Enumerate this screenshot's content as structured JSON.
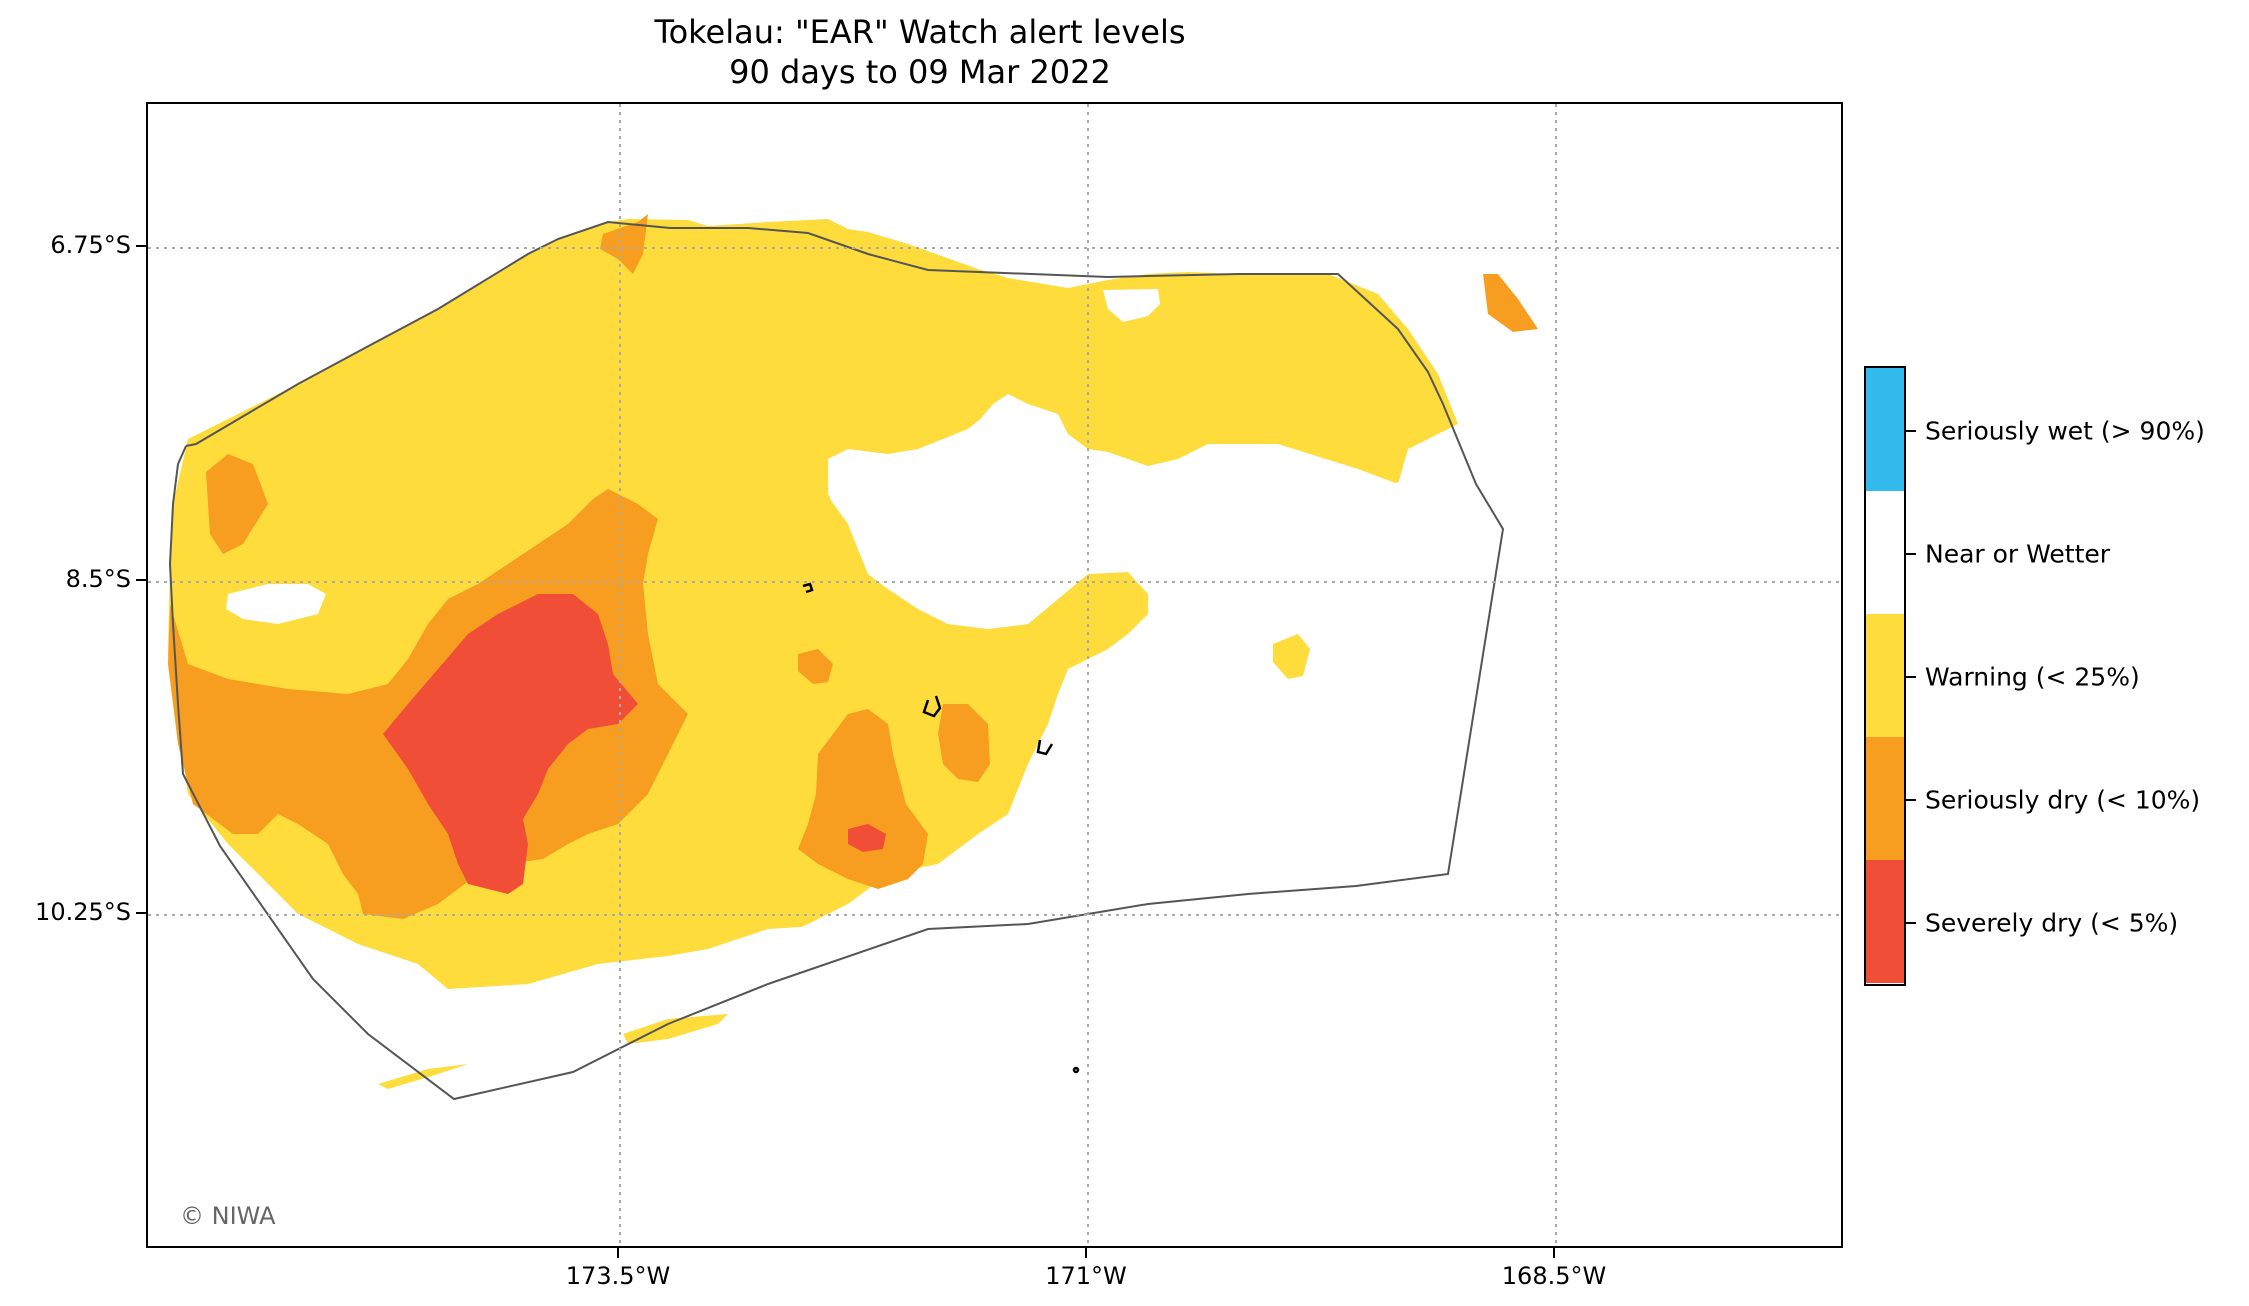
{
  "map": {
    "title_line1": "Tokelau: \"EAR\" Watch alert levels",
    "title_line2": "90 days to 09 Mar 2022",
    "latitude_labels": [
      "6.75°S",
      "8.5°S",
      "10.25°S"
    ],
    "longitude_labels": [
      "173.5°W",
      "171°W",
      "168.5°W"
    ],
    "copyright": "© NIWA",
    "gridlines": "dotted"
  },
  "legend": {
    "position": "right",
    "items": [
      {
        "label": "Seriously wet (> 90%)",
        "color": "#33bbee"
      },
      {
        "label": "Near or Wetter",
        "color": "#ffffff"
      },
      {
        "label": "Warning (< 25%)",
        "color": "#fddc3c"
      },
      {
        "label": "Seriously dry (< 10%)",
        "color": "#f79d1f"
      },
      {
        "label": "Severely dry (< 5%)",
        "color": "#f04e37"
      }
    ]
  }
}
